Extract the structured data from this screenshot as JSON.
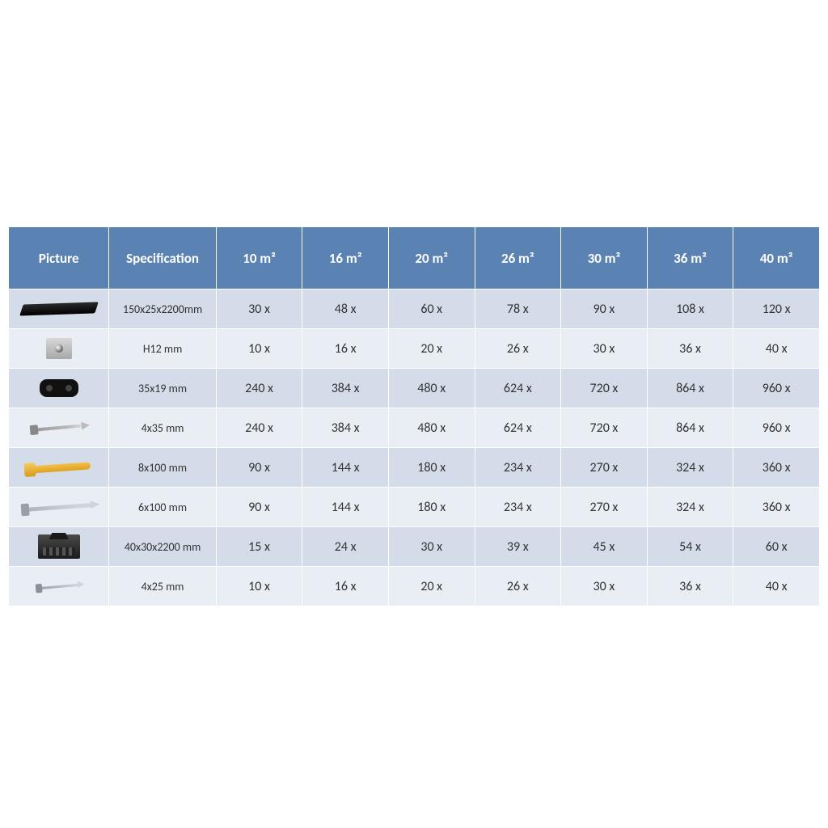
{
  "table": {
    "type": "table",
    "header_bg": "#5a83b4",
    "header_text_color": "#ffffff",
    "row_even_bg": "#d3dce8",
    "row_odd_bg": "#e9edf4",
    "border_color": "#ffffff",
    "text_color": "#333333",
    "font_family": "Calibri",
    "header_fontsize": 17,
    "cell_fontsize": 16,
    "spec_fontsize": 14,
    "columns": [
      "Picture",
      "Specification",
      "10 m²",
      "16 m²",
      "20 m²",
      "26 m²",
      "30 m²",
      "36 m²",
      "40 m²"
    ],
    "column_widths_pct": [
      12.4,
      13.2,
      10.63,
      10.63,
      10.63,
      10.63,
      10.63,
      10.63,
      10.63
    ],
    "rows": [
      {
        "icon": "plank",
        "spec": "150x25x2200mm",
        "vals": [
          "30 x",
          "48 x",
          "60 x",
          "78 x",
          "90 x",
          "108 x",
          "120 x"
        ]
      },
      {
        "icon": "clip",
        "spec": "H12 mm",
        "vals": [
          "10 x",
          "16 x",
          "20 x",
          "26 x",
          "30 x",
          "36 x",
          "40 x"
        ]
      },
      {
        "icon": "spacer",
        "spec": "35x19 mm",
        "vals": [
          "240 x",
          "384 x",
          "480 x",
          "624 x",
          "720 x",
          "864 x",
          "960 x"
        ]
      },
      {
        "icon": "screw-short",
        "spec": "4x35 mm",
        "vals": [
          "240 x",
          "384 x",
          "480 x",
          "624 x",
          "720 x",
          "864 x",
          "960 x"
        ]
      },
      {
        "icon": "plug",
        "spec": "8x100 mm",
        "vals": [
          "90 x",
          "144 x",
          "180 x",
          "234 x",
          "270 x",
          "324 x",
          "360 x"
        ]
      },
      {
        "icon": "nail",
        "spec": "6x100 mm",
        "vals": [
          "90 x",
          "144 x",
          "180 x",
          "234 x",
          "270 x",
          "324 x",
          "360 x"
        ]
      },
      {
        "icon": "joist",
        "spec": "40x30x2200 mm",
        "vals": [
          "15 x",
          "24 x",
          "30 x",
          "39 x",
          "45 x",
          "54 x",
          "60 x"
        ]
      },
      {
        "icon": "screw-tiny",
        "spec": "4x25 mm",
        "vals": [
          "10 x",
          "16 x",
          "20 x",
          "26 x",
          "30 x",
          "36 x",
          "40 x"
        ]
      }
    ]
  }
}
